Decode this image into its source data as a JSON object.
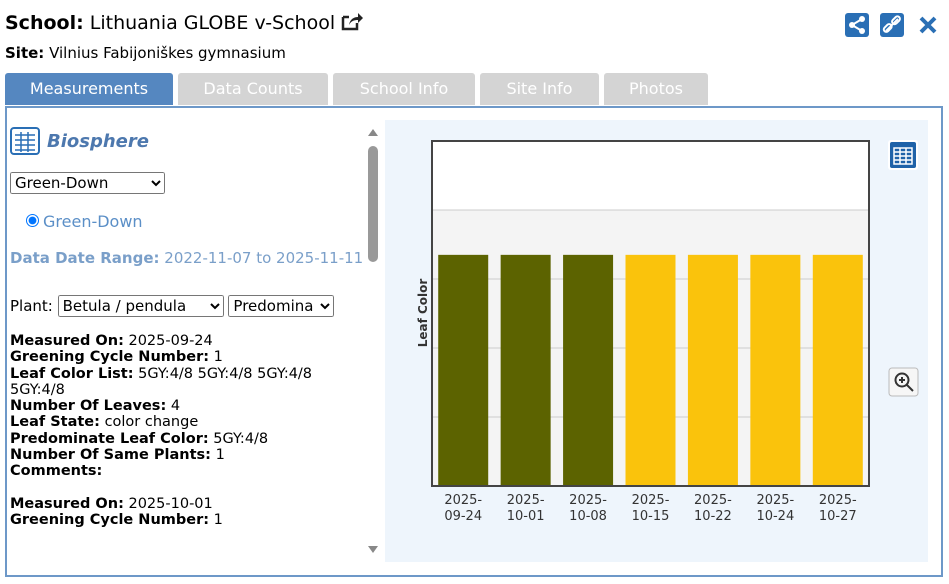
{
  "header": {
    "school_label": "School:",
    "school_name": "Lithuania GLOBE v-School",
    "site_label": "Site:",
    "site_name": "Vilnius Fabijoniškes gymnasium"
  },
  "tabs": [
    "Measurements",
    "Data Counts",
    "School Info",
    "Site Info",
    "Photos"
  ],
  "panel": {
    "title": "Biosphere",
    "protocol_select": "Green-Down",
    "radio": "Green-Down",
    "date_range_label": "Data Date Range:",
    "date_range": "2022-11-07 to 2025-11-11",
    "plant_label": "Plant:",
    "plant_select": "Betula / pendula",
    "color_select": "Predomina",
    "records": [
      {
        "fields": [
          {
            "label": "Measured On:",
            "value": "2025-09-24"
          },
          {
            "label": "Greening Cycle Number:",
            "value": "1"
          },
          {
            "label": "Leaf Color List:",
            "value": "5GY:4/8 5GY:4/8 5GY:4/8 5GY:4/8"
          },
          {
            "label": "Number Of Leaves:",
            "value": "4"
          },
          {
            "label": "Leaf State:",
            "value": "color change"
          },
          {
            "label": "Predominate Leaf Color:",
            "value": "5GY:4/8"
          },
          {
            "label": "Number Of Same Plants:",
            "value": "1"
          },
          {
            "label": "Comments:"
          }
        ]
      },
      {
        "fields": [
          {
            "label": "Measured On:",
            "value": "2025-10-01"
          },
          {
            "label": "Greening Cycle Number:",
            "value": "1"
          }
        ]
      }
    ]
  },
  "chart_data": {
    "type": "bar",
    "y_label": "Leaf Color",
    "categories": [
      "2025-09-24",
      "2025-10-01",
      "2025-10-08",
      "2025-10-15",
      "2025-10-22",
      "2025-10-24",
      "2025-10-27"
    ],
    "values": [
      3.35,
      3.35,
      3.35,
      3.35,
      3.35,
      3.35,
      3.35
    ],
    "colors": [
      "#5c6300",
      "#5c6300",
      "#5c6300",
      "#fac30c",
      "#fac30c",
      "#fac30c",
      "#fac30c"
    ],
    "ylim": [
      0,
      5
    ],
    "grid_lines": [
      1,
      2,
      3,
      4
    ]
  }
}
